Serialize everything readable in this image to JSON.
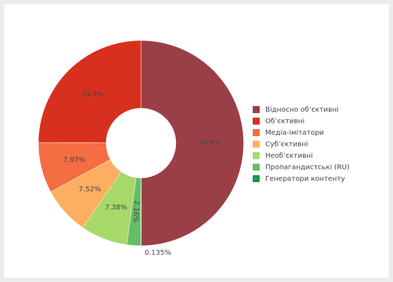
{
  "chart_data": {
    "type": "donut",
    "categories": [
      "Відносно об’єктивні",
      "Об’єктивні",
      "Медіа-імітатори",
      "Суб’єктивні",
      "Необ’єктивні",
      "Пропагандистські (RU)",
      "Генератори контенту"
    ],
    "values": [
      49.9,
      24.9,
      7.97,
      7.52,
      7.38,
      2.16,
      0.135
    ],
    "value_labels": [
      "49.9%",
      "24.9%",
      "7.97%",
      "7.52%",
      "7.38%",
      "2.16%",
      "0.135%"
    ],
    "colors": [
      "#9b3f47",
      "#d7301f",
      "#f46d43",
      "#fdae61",
      "#a6d96a",
      "#66bd63",
      "#1a9850"
    ],
    "legend": "right"
  }
}
